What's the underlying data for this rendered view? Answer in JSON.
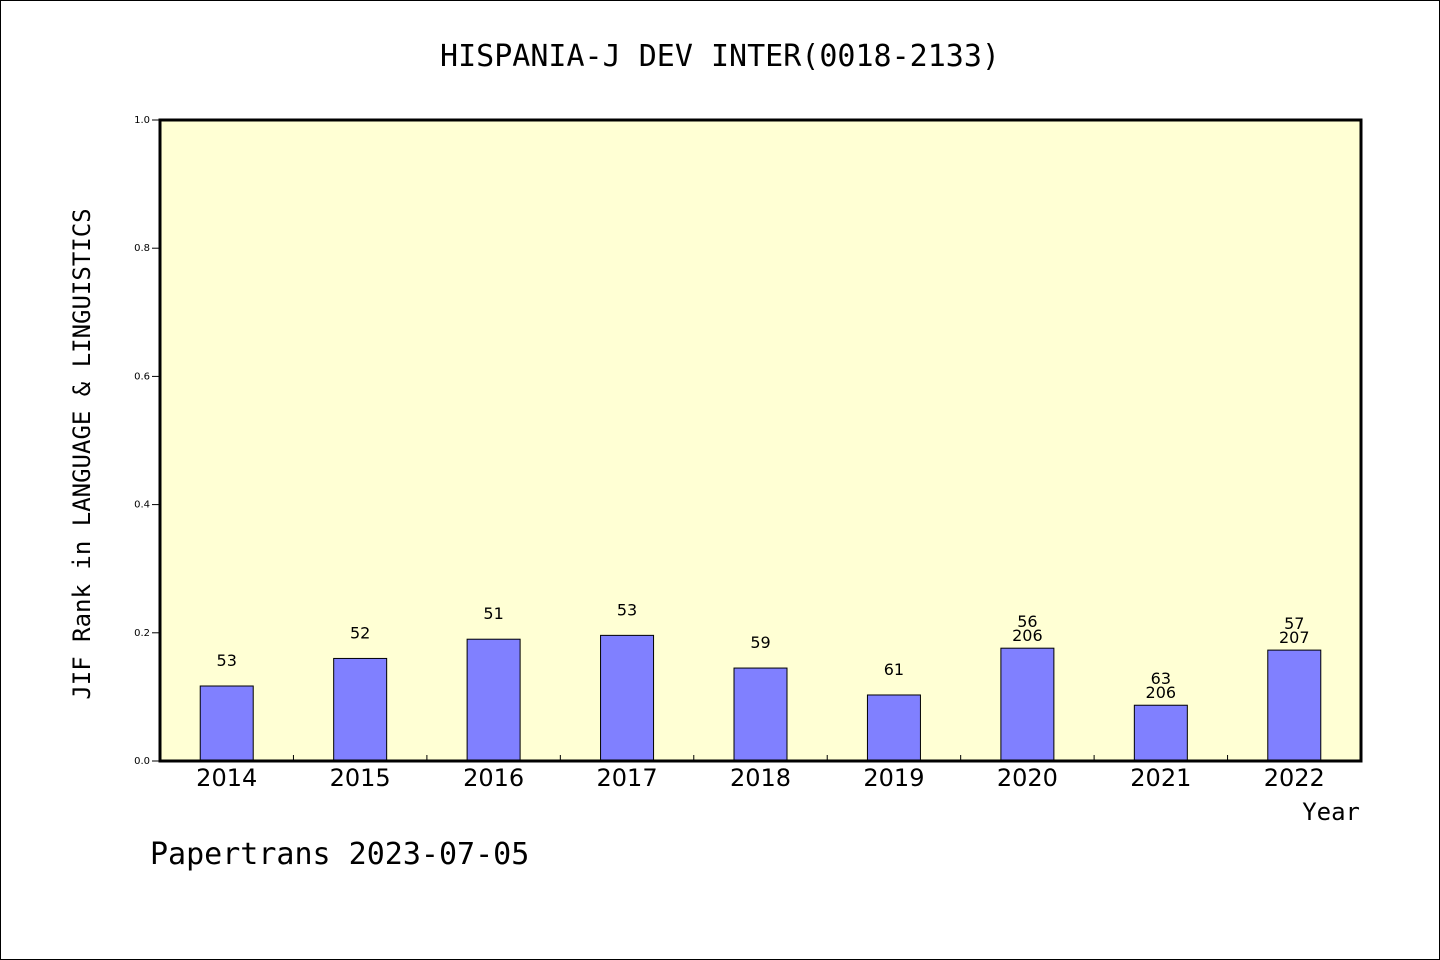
{
  "chart_data": {
    "type": "bar",
    "title": "HISPANIA-J DEV INTER(0018-2133)",
    "xlabel": "Year",
    "ylabel": "JIF Rank in LANGUAGE & LINGUISTICS",
    "ylim": [
      0,
      1.0
    ],
    "yticks": [
      "0.0",
      "0.2",
      "0.4",
      "0.6",
      "0.8",
      "1.0"
    ],
    "grid": false,
    "categories": [
      "2014",
      "2015",
      "2016",
      "2017",
      "2018",
      "2019",
      "2020",
      "2021",
      "2022"
    ],
    "values": [
      0.117,
      0.16,
      0.19,
      0.196,
      0.145,
      0.103,
      0.176,
      0.087,
      0.173
    ],
    "labels_rank": [
      "53",
      "52",
      "51",
      "53",
      "59",
      "61",
      "56",
      "63",
      "57"
    ],
    "labels_total": [
      "",
      "",
      "",
      "",
      "",
      "",
      "206",
      "206",
      "207"
    ],
    "colors": {
      "plot_background": "#ffffd4",
      "bar": "#8080ff",
      "axis": "#000000"
    }
  },
  "footer": "Papertrans 2023-07-05"
}
